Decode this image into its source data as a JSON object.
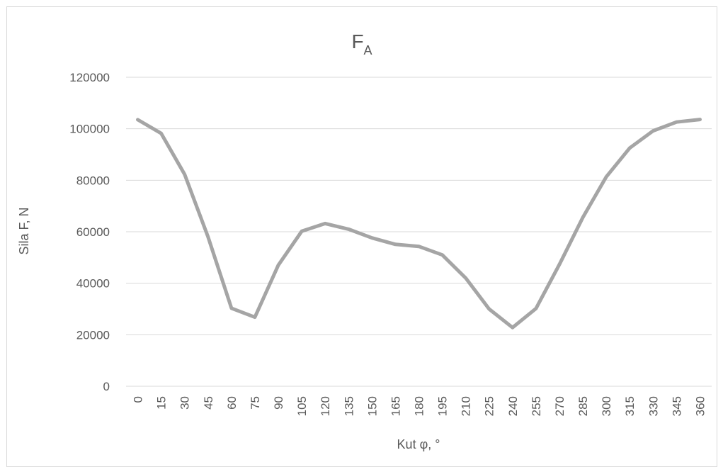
{
  "chart_data": {
    "type": "line",
    "title": "F",
    "title_subscript": "A",
    "xlabel": "Kut φ, °",
    "ylabel": "Sila F, N",
    "ylim": [
      0,
      120000
    ],
    "yticks": [
      "0",
      "20000",
      "40000",
      "60000",
      "80000",
      "100000",
      "120000"
    ],
    "categories": [
      "0",
      "15",
      "30",
      "45",
      "60",
      "75",
      "90",
      "105",
      "120",
      "135",
      "150",
      "165",
      "180",
      "195",
      "210",
      "225",
      "240",
      "255",
      "270",
      "285",
      "300",
      "315",
      "330",
      "345",
      "360"
    ],
    "series": [
      {
        "values": [
          103500,
          98200,
          82300,
          58000,
          30300,
          26800,
          47000,
          60200,
          63200,
          61000,
          57600,
          55100,
          54300,
          51000,
          42000,
          30000,
          22800,
          30200,
          47300,
          65600,
          81300,
          92500,
          99200,
          102600,
          103600
        ],
        "color": "#a5a5a5"
      }
    ],
    "grid": true,
    "legend": "none",
    "colors": {
      "grid": "#d9d9d9",
      "text": "#595959",
      "line": "#a5a5a5"
    }
  }
}
